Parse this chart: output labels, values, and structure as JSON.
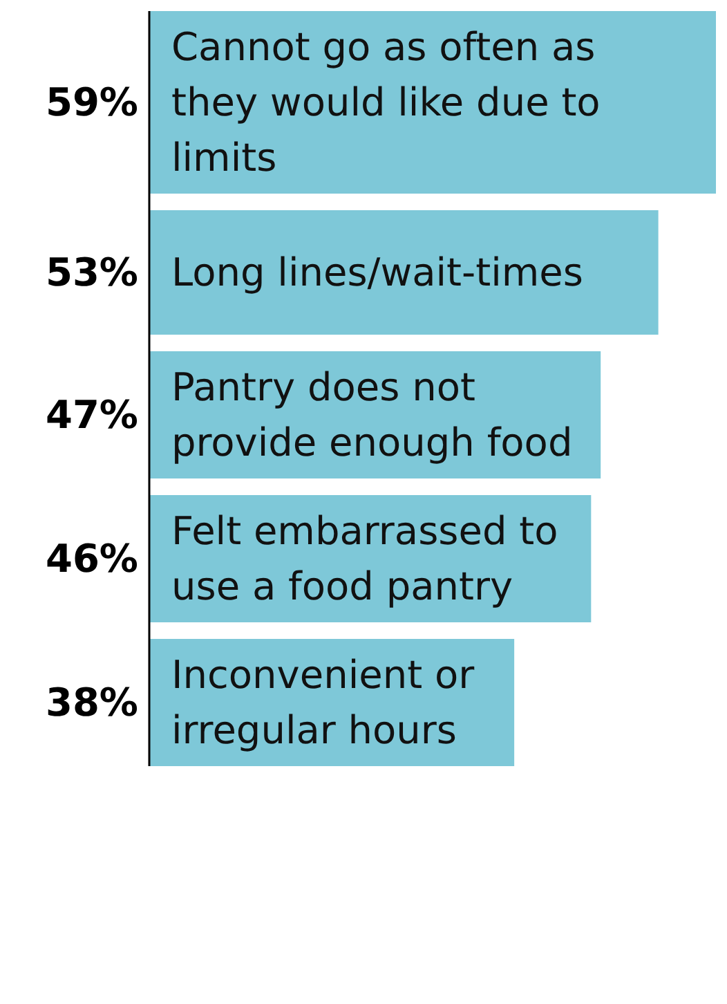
{
  "chart_data": {
    "type": "bar",
    "orientation": "horizontal",
    "categories": [
      "Cannot go as often as they would like due to limits",
      "Long lines/wait-times",
      "Pantry does not provide enough food",
      "Felt embarrassed to use a food pantry",
      "Inconvenient or irregular hours"
    ],
    "values": [
      59,
      53,
      47,
      46,
      38
    ],
    "value_labels": [
      "59%",
      "53%",
      "47%",
      "46%",
      "38%"
    ],
    "color": "#7ec8d8"
  }
}
